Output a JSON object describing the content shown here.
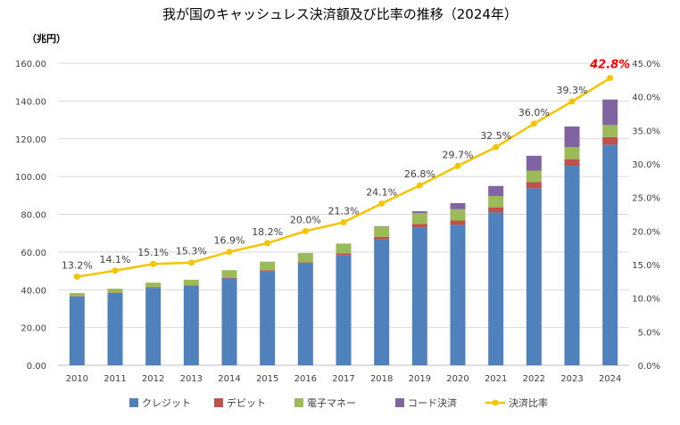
{
  "chart_data": {
    "type": "bar",
    "title": "我が国のキャッシュレス決済額及び比率の推移（2024年）",
    "y_unit_label": "（兆円）",
    "categories": [
      "2010",
      "2011",
      "2012",
      "2013",
      "2014",
      "2015",
      "2016",
      "2017",
      "2018",
      "2019",
      "2020",
      "2021",
      "2022",
      "2023",
      "2024"
    ],
    "ylim": [
      0,
      160
    ],
    "y_ticks": [
      "0.00",
      "20.00",
      "40.00",
      "60.00",
      "80.00",
      "100.00",
      "120.00",
      "140.00",
      "160.00"
    ],
    "y2lim": [
      0,
      45
    ],
    "y2_ticks": [
      "0.0%",
      "5.0%",
      "10.0%",
      "15.0%",
      "20.0%",
      "25.0%",
      "30.0%",
      "35.0%",
      "40.0%",
      "45.0%"
    ],
    "stacked": true,
    "series": [
      {
        "name": "クレジット",
        "color": "#4f81bd",
        "values": [
          36.5,
          38.3,
          41.0,
          42.0,
          46.0,
          50.0,
          54.0,
          58.4,
          66.7,
          73.1,
          74.4,
          81.0,
          93.8,
          105.7,
          116.9
        ]
      },
      {
        "name": "デビット",
        "color": "#c0504d",
        "values": [
          0.2,
          0.3,
          0.3,
          0.3,
          0.4,
          0.4,
          0.5,
          0.9,
          1.3,
          1.7,
          2.3,
          2.7,
          3.2,
          3.5,
          4.0
        ]
      },
      {
        "name": "電子マネー",
        "color": "#9bbb59",
        "values": [
          1.6,
          2.0,
          2.5,
          3.0,
          4.0,
          4.5,
          5.0,
          5.2,
          5.5,
          5.8,
          6.0,
          6.0,
          6.1,
          6.4,
          6.4
        ]
      },
      {
        "name": "コード決済",
        "color": "#8064a2",
        "values": [
          0,
          0,
          0,
          0,
          0,
          0,
          0,
          0,
          0.2,
          1.0,
          3.2,
          5.3,
          7.9,
          10.9,
          13.5
        ]
      }
    ],
    "line_series": {
      "name": "決済比率",
      "color": "#f5c400",
      "axis": "right",
      "values": [
        13.2,
        14.1,
        15.1,
        15.3,
        16.9,
        18.2,
        20.0,
        21.3,
        24.1,
        26.8,
        29.7,
        32.5,
        36.0,
        39.3,
        42.8
      ],
      "labels": [
        "13.2%",
        "14.1%",
        "15.1%",
        "15.3%",
        "16.9%",
        "18.2%",
        "20.0%",
        "21.3%",
        "24.1%",
        "26.8%",
        "29.7%",
        "32.5%",
        "36.0%",
        "39.3%",
        "42.8%"
      ],
      "highlight_color": "#ff0000"
    },
    "legend_position": "bottom",
    "grid": "horizontal"
  }
}
